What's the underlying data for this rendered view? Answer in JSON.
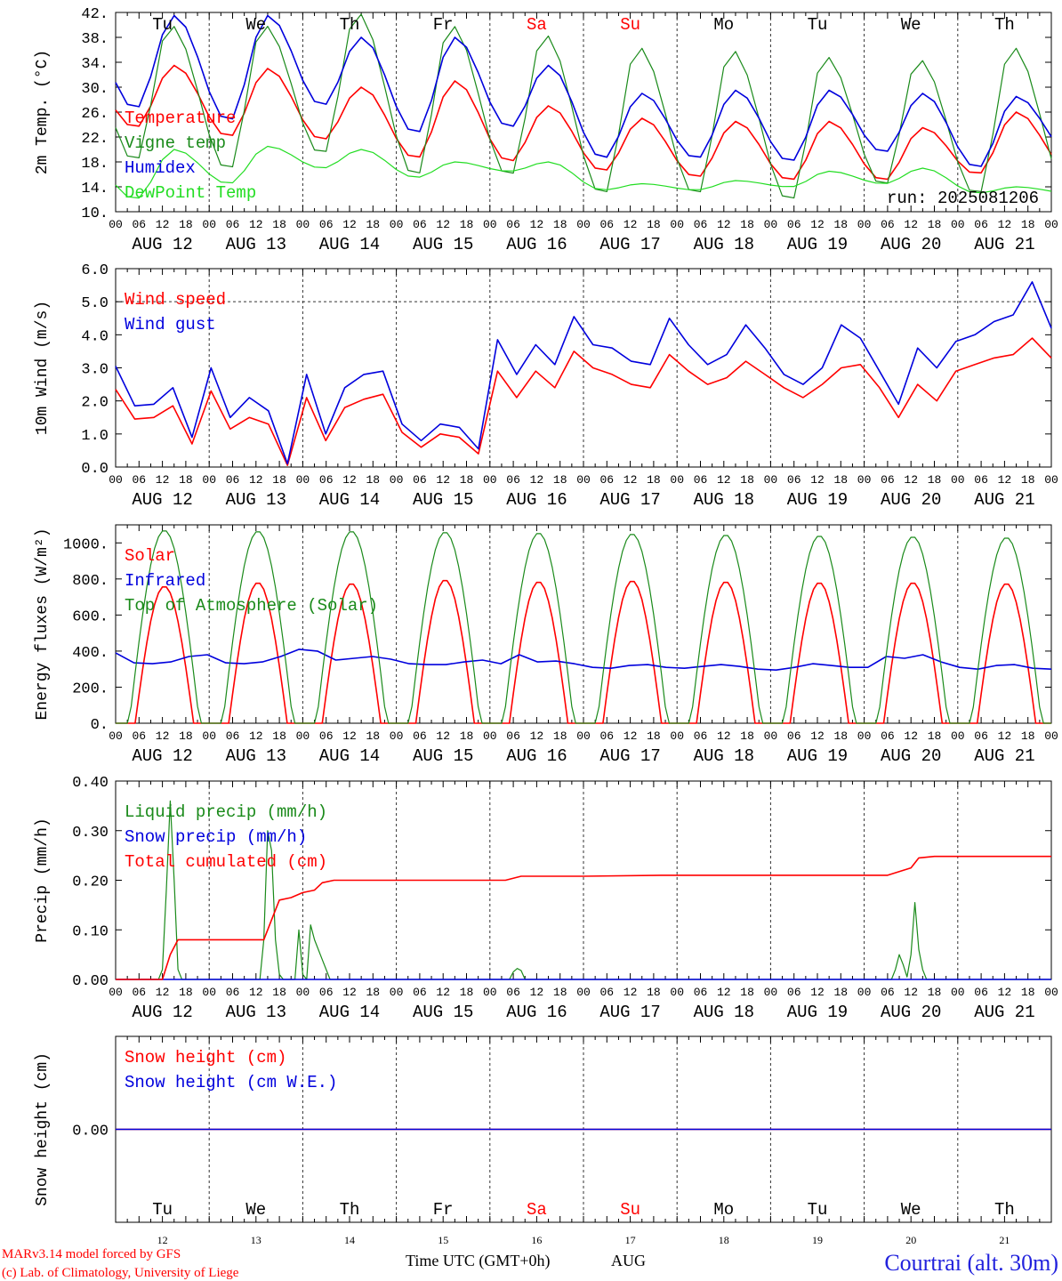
{
  "colors": {
    "red": "#ff0000",
    "green": "#1a8a1a",
    "blue": "#0000dd",
    "light_green": "#22dd22",
    "axis": "#000000",
    "grid": "#333333",
    "weekend": "#ff0000"
  },
  "days": {
    "weekday_labels": [
      "Tu",
      "We",
      "Th",
      "Fr",
      "Sa",
      "Su",
      "Mo",
      "Tu",
      "We",
      "Th"
    ],
    "weekend_flags": [
      false,
      false,
      false,
      false,
      true,
      true,
      false,
      false,
      false,
      false
    ],
    "date_labels": [
      "AUG 12",
      "AUG 13",
      "AUG 14",
      "AUG 15",
      "AUG 16",
      "AUG 17",
      "AUG 18",
      "AUG 19",
      "AUG 20",
      "AUG 21"
    ],
    "day_numbers": [
      "12",
      "13",
      "14",
      "15",
      "16",
      "17",
      "18",
      "19",
      "20",
      "21"
    ],
    "hour_ticks": [
      "00",
      "06",
      "12",
      "18"
    ],
    "final_hour": "00"
  },
  "chart_data": [
    {
      "type": "line",
      "ylabel": "2m Temp. (°C)",
      "ylim": [
        10,
        42
      ],
      "yticks": [
        "10.",
        "14.",
        "18.",
        "22.",
        "26.",
        "30.",
        "34.",
        "38.",
        "42."
      ],
      "ytick_values": [
        10,
        14,
        18,
        22,
        26,
        30,
        34,
        38,
        42
      ],
      "annotation": "run: 2025081206",
      "series": [
        {
          "name": "Temperature",
          "color": "red",
          "min": [
            23.5,
            22,
            21.5,
            18.5,
            18,
            16.5,
            15.5,
            15,
            15,
            16,
            16.5
          ],
          "max": [
            33.5,
            33,
            30,
            31,
            27,
            25,
            24.5,
            24.5,
            23.5,
            26
          ]
        },
        {
          "name": "Vigne temp",
          "color": "green",
          "min": [
            18,
            16.5,
            19,
            15.5,
            15.5,
            12.5,
            12.5,
            11.5,
            14,
            12.5,
            12.5
          ],
          "max": [
            40,
            40,
            42,
            40,
            38.5,
            36.5,
            36,
            35,
            34.5,
            36.5
          ]
        },
        {
          "name": "Humidex",
          "color": "blue",
          "min": [
            26.5,
            24.5,
            27,
            22.5,
            23.5,
            18.5,
            18.5,
            18,
            19.5,
            17,
            19.5
          ],
          "max": [
            41.5,
            41.5,
            38,
            38,
            33.5,
            29,
            29.5,
            29.5,
            29,
            28.5
          ]
        },
        {
          "name": "DewPoint Temp",
          "color": "light_green",
          "min": [
            12,
            14.5,
            17,
            15.5,
            16.5,
            13.5,
            13.5,
            14,
            14.5,
            13,
            13
          ],
          "max": [
            20,
            20.5,
            20,
            18,
            18,
            14.5,
            15,
            16.5,
            17,
            14
          ]
        }
      ]
    },
    {
      "type": "line",
      "ylabel": "10m Wind (m/s)",
      "ylim": [
        0,
        6
      ],
      "yticks": [
        "0.0",
        "1.0",
        "2.0",
        "3.0",
        "4.0",
        "5.0",
        "6.0"
      ],
      "ytick_values": [
        0,
        1,
        2,
        3,
        4,
        5,
        6
      ],
      "reference_line": 5,
      "series": [
        {
          "name": "Wind speed",
          "color": "red",
          "values": [
            2.35,
            1.45,
            1.5,
            1.85,
            0.7,
            2.3,
            1.15,
            1.5,
            1.3,
            0.05,
            2.1,
            0.8,
            1.8,
            2.05,
            2.2,
            1.05,
            0.6,
            1.0,
            0.9,
            0.4,
            2.9,
            2.1,
            2.9,
            2.4,
            3.5,
            3.0,
            2.8,
            2.5,
            2.4,
            3.4,
            2.9,
            2.5,
            2.7,
            3.2,
            2.8,
            2.4,
            2.1,
            2.5,
            3.0,
            3.1,
            2.4,
            1.5,
            2.5,
            2.0,
            2.9,
            3.1,
            3.3,
            3.4,
            3.9,
            3.3
          ]
        },
        {
          "name": "Wind gust",
          "color": "blue",
          "values": [
            3.05,
            1.85,
            1.9,
            2.4,
            0.9,
            3.0,
            1.5,
            2.1,
            1.7,
            0.1,
            2.8,
            1.0,
            2.4,
            2.8,
            2.9,
            1.3,
            0.8,
            1.3,
            1.2,
            0.55,
            3.85,
            2.8,
            3.7,
            3.1,
            4.55,
            3.7,
            3.6,
            3.2,
            3.1,
            4.5,
            3.7,
            3.1,
            3.4,
            4.3,
            3.6,
            2.8,
            2.5,
            3.0,
            4.3,
            3.9,
            2.9,
            1.9,
            3.6,
            3.0,
            3.8,
            4.0,
            4.4,
            4.6,
            5.6,
            4.2
          ]
        }
      ]
    },
    {
      "type": "line",
      "ylabel": "Energy fluxes (W/m²)",
      "ylim": [
        0,
        1100
      ],
      "yticks": [
        "0.",
        "200.",
        "400.",
        "600.",
        "800.",
        "1000."
      ],
      "ytick_values": [
        0,
        200,
        400,
        600,
        800,
        1000
      ],
      "series": [
        {
          "name": "Solar",
          "color": "red",
          "daily_peak": [
            760,
            780,
            775,
            795,
            785,
            790,
            785,
            780,
            780,
            775
          ]
        },
        {
          "name": "Infrared",
          "color": "blue",
          "values": [
            390,
            335,
            330,
            340,
            370,
            380,
            335,
            330,
            340,
            370,
            410,
            400,
            350,
            360,
            370,
            355,
            330,
            325,
            325,
            340,
            350,
            330,
            380,
            340,
            345,
            330,
            310,
            305,
            320,
            325,
            310,
            305,
            315,
            325,
            315,
            300,
            295,
            310,
            330,
            320,
            310,
            310,
            370,
            360,
            380,
            340,
            310,
            300,
            320,
            325,
            305,
            300
          ]
        },
        {
          "name": "Top of Atmosphere (Solar)",
          "color": "green",
          "daily_peak": [
            1070,
            1065,
            1065,
            1060,
            1055,
            1050,
            1045,
            1040,
            1035,
            1030
          ]
        }
      ]
    },
    {
      "type": "line",
      "ylabel": "Precip (mm/h)",
      "ylim": [
        0,
        0.4
      ],
      "yticks": [
        "0.00",
        "0.10",
        "0.20",
        "0.30",
        "0.40"
      ],
      "ytick_values": [
        0,
        0.1,
        0.2,
        0.3,
        0.4
      ],
      "series": [
        {
          "name": "Liquid precip (mm/h)",
          "color": "green",
          "points": [
            [
              0,
              0
            ],
            [
              11,
              0
            ],
            [
              12,
              0.02
            ],
            [
              13,
              0.18
            ],
            [
              14,
              0.36
            ],
            [
              15,
              0.2
            ],
            [
              16,
              0.02
            ],
            [
              17,
              0
            ],
            [
              37,
              0
            ],
            [
              38,
              0.08
            ],
            [
              39,
              0.3
            ],
            [
              40,
              0.26
            ],
            [
              41,
              0.08
            ],
            [
              42,
              0.01
            ],
            [
              43,
              0
            ],
            [
              46,
              0
            ],
            [
              47,
              0.1
            ],
            [
              48,
              0.01
            ],
            [
              49,
              0
            ],
            [
              50,
              0.11
            ],
            [
              51,
              0.08
            ],
            [
              53,
              0.04
            ],
            [
              55,
              0
            ],
            [
              101,
              0
            ],
            [
              102,
              0.015
            ],
            [
              103,
              0.022
            ],
            [
              104,
              0.018
            ],
            [
              105,
              0
            ],
            [
              199,
              0
            ],
            [
              200,
              0.02
            ],
            [
              201,
              0.05
            ],
            [
              202,
              0.03
            ],
            [
              203,
              0.005
            ],
            [
              204,
              0.05
            ],
            [
              205,
              0.155
            ],
            [
              206,
              0.06
            ],
            [
              207,
              0.02
            ],
            [
              208,
              0
            ],
            [
              240,
              0
            ]
          ]
        },
        {
          "name": "Snow precip (mm/h)",
          "color": "blue",
          "points": [
            [
              0,
              0
            ],
            [
              240,
              0
            ]
          ]
        },
        {
          "name": "Total cumulated (cm)",
          "color": "red",
          "points": [
            [
              0,
              0
            ],
            [
              12,
              0
            ],
            [
              14,
              0.05
            ],
            [
              16,
              0.08
            ],
            [
              38,
              0.08
            ],
            [
              40,
              0.12
            ],
            [
              42,
              0.16
            ],
            [
              45,
              0.165
            ],
            [
              48,
              0.175
            ],
            [
              51,
              0.18
            ],
            [
              53,
              0.195
            ],
            [
              56,
              0.2
            ],
            [
              100,
              0.2
            ],
            [
              104,
              0.208
            ],
            [
              120,
              0.208
            ],
            [
              140,
              0.21
            ],
            [
              198,
              0.21
            ],
            [
              202,
              0.22
            ],
            [
              204,
              0.225
            ],
            [
              206,
              0.245
            ],
            [
              210,
              0.248
            ],
            [
              240,
              0.248
            ]
          ]
        }
      ]
    },
    {
      "type": "line",
      "ylabel": "Snow height (cm)",
      "ylim": [
        -1,
        1
      ],
      "yticks": [
        "0.00"
      ],
      "ytick_values": [
        0
      ],
      "series": [
        {
          "name": "Snow height (cm)",
          "color": "red",
          "points": [
            [
              0,
              0
            ],
            [
              240,
              0
            ]
          ]
        },
        {
          "name": "Snow height (cm W.E.)",
          "color": "blue",
          "points": [
            [
              0,
              0
            ],
            [
              240,
              0
            ]
          ]
        }
      ]
    }
  ],
  "footer": {
    "xlabel": "Time UTC (GMT+0h)",
    "month": "AUG",
    "credit_line1": "MARv3.14 model forced by GFS",
    "credit_line2": "(c) Lab. of Climatology, University of Liege",
    "station": "Courtrai (alt. 30m)"
  }
}
